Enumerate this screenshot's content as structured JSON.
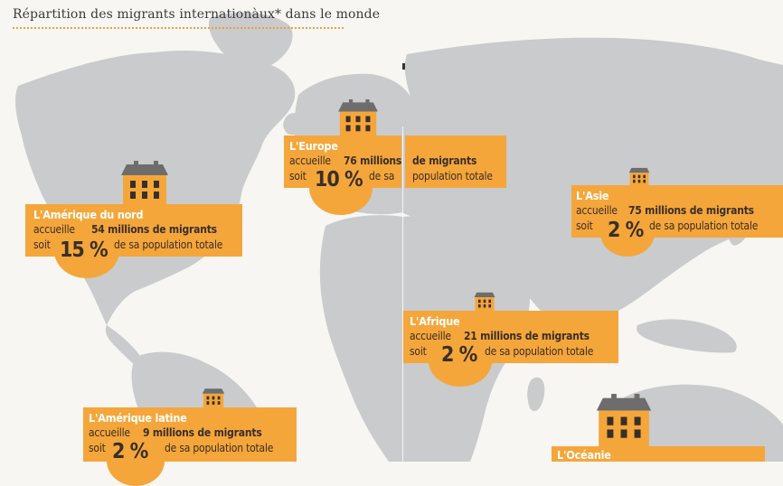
{
  "title": "Répartition des migrants internationàux* dans le monde",
  "colors": {
    "accent": "#f5a63a",
    "land": "#c9cbcd",
    "text": "#3a2f28"
  },
  "regions": [
    {
      "key": "north_america",
      "name": "L'Amérique du nord",
      "accueille": "accueille",
      "amount": "54 millions de migrants",
      "soit": "soit",
      "pct": "15 %",
      "tail": "de sa population totale"
    },
    {
      "key": "europe",
      "name": "L'Europe",
      "accueille": "accueille",
      "amount": "76 millions",
      "amount2": "de migrants",
      "soit": "soit",
      "pct": "10 %",
      "tail": "de sa",
      "tail2": "population totale"
    },
    {
      "key": "asia",
      "name": "L'Asie",
      "accueille": "accueille",
      "amount": "75 millions de migrants",
      "soit": "soit",
      "pct": "2 %",
      "tail": "de sa population totale"
    },
    {
      "key": "africa",
      "name": "L'Afrique",
      "accueille": "accueille",
      "amount": "21 millions de migrants",
      "soit": "soit",
      "pct": "2 %",
      "tail": "de sa population totale"
    },
    {
      "key": "latin_america",
      "name": "L'Amérique latine",
      "accueille": "accueille",
      "amount": "9 millions de migrants",
      "soit": "soit",
      "pct": "2 %",
      "tail": "de sa population totale"
    },
    {
      "key": "oceania",
      "name": "L'Océanie"
    }
  ]
}
